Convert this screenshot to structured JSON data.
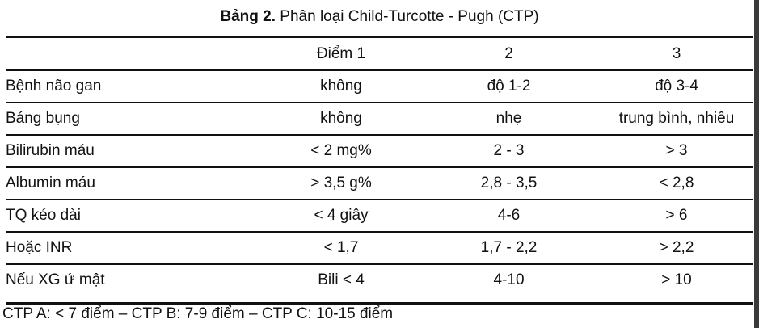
{
  "caption": {
    "lead": "Bảng 2.",
    "rest": " Phân loại Child-Turcotte - Pugh (CTP)"
  },
  "table": {
    "header": [
      "",
      "Điểm 1",
      "2",
      "3"
    ],
    "rows": [
      [
        "Bệnh não gan",
        "không",
        "độ 1-2",
        "độ 3-4"
      ],
      [
        "Báng bụng",
        "không",
        "nhẹ",
        "trung bình, nhiều"
      ],
      [
        "Bilirubin máu",
        "< 2 mg%",
        "2 - 3",
        "> 3"
      ],
      [
        "Albumin máu",
        "> 3,5 g%",
        "2,8 - 3,5",
        "< 2,8"
      ],
      [
        "TQ kéo dài",
        "< 4 giây",
        "4-6",
        "> 6"
      ],
      [
        "Hoặc INR",
        "< 1,7",
        "1,7 - 2,2",
        "> 2,2"
      ],
      [
        "Nếu XG ứ mật",
        "Bili < 4",
        "4-10",
        "> 10"
      ]
    ]
  },
  "footnote": "CTP A: < 7 điểm – CTP B: 7-9 điểm – CTP C: 10-15 điểm"
}
